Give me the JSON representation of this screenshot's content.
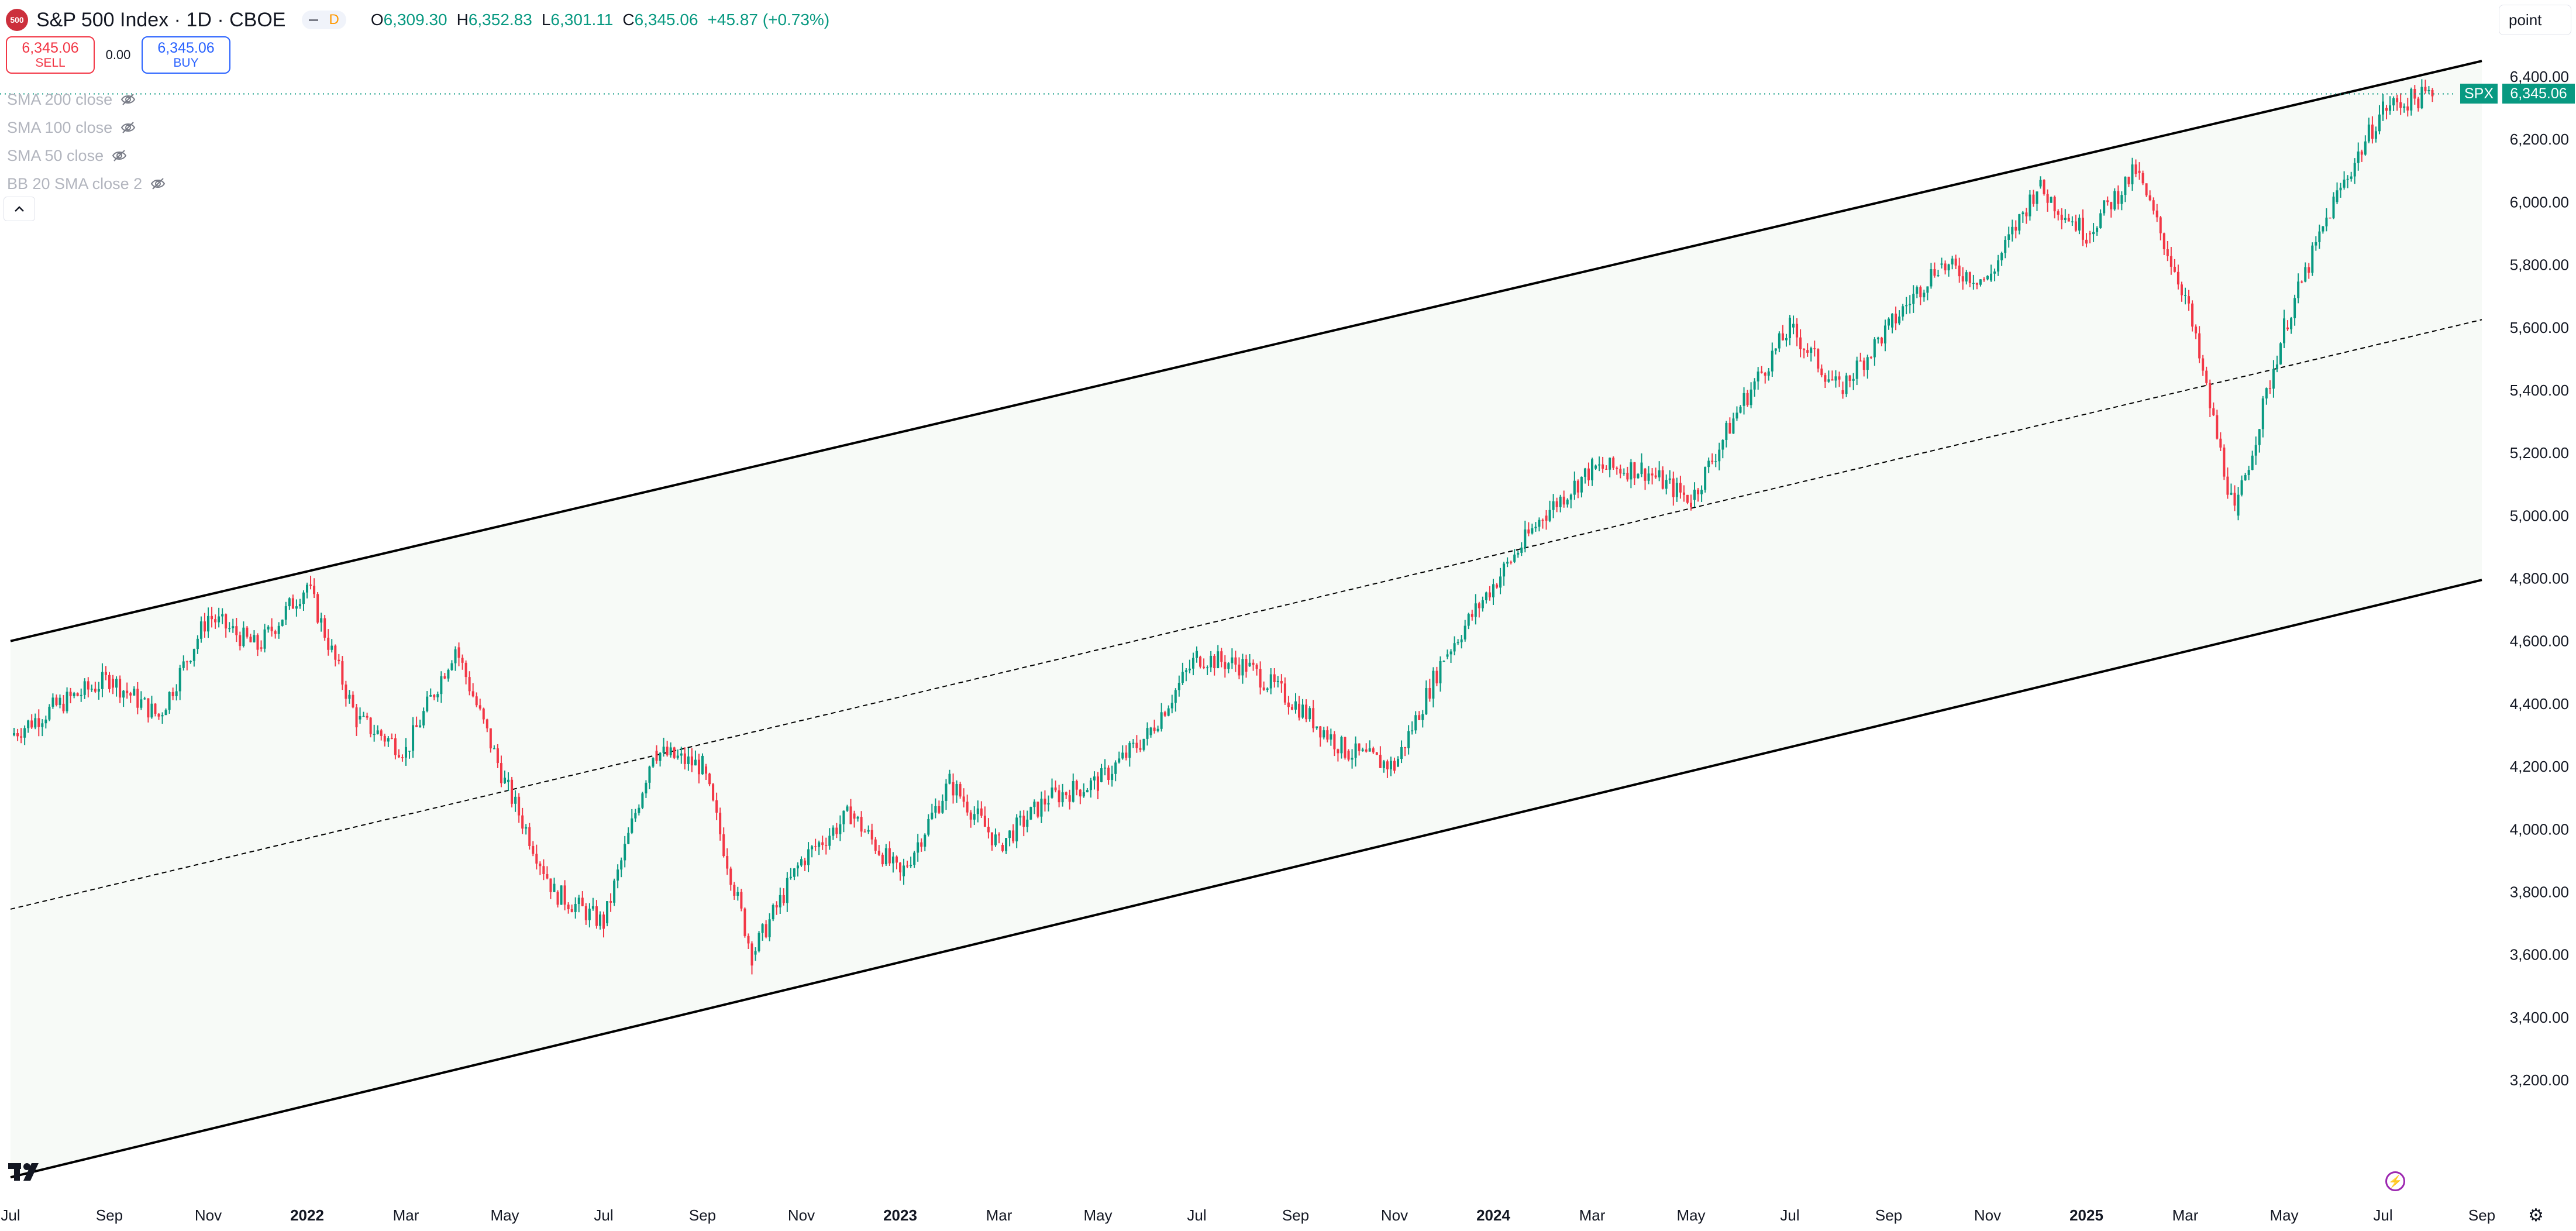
{
  "header": {
    "logo_text": "500",
    "title": "S&P 500 Index · 1D · CBOE",
    "interval_badge": "D",
    "open_label": "O",
    "open_value": "6,309.30",
    "high_label": "H",
    "high_value": "6,352.83",
    "low_label": "L",
    "low_value": "6,301.11",
    "close_label": "C",
    "close_value": "6,345.06",
    "change": "+45.87 (+0.73%)"
  },
  "trade": {
    "sell_price": "6,345.06",
    "sell_label": "SELL",
    "spread": "0.00",
    "buy_price": "6,345.06",
    "buy_label": "BUY"
  },
  "indicators": [
    {
      "label": "SMA 200 close"
    },
    {
      "label": "SMA 100 close"
    },
    {
      "label": "SMA 50 close"
    },
    {
      "label": "BB 20 SMA close 2"
    }
  ],
  "toolbar": {
    "mode_label": "point"
  },
  "price_tag": {
    "symbol": "SPX",
    "value": "6,345.06"
  },
  "colors": {
    "up": "#089981",
    "down": "#f23645",
    "channel_fill": "#f7faf7",
    "accent": "#2962ff"
  },
  "icons": [
    "eye-off-icon",
    "chevron-up-icon",
    "tradingview-logo-icon",
    "lightning-icon",
    "gear-icon"
  ],
  "chart_data": {
    "type": "candlestick",
    "x_tick_labels": [
      "Jul",
      "Sep",
      "Nov",
      "2022",
      "Mar",
      "May",
      "Jul",
      "Sep",
      "Nov",
      "2023",
      "Mar",
      "May",
      "Jul",
      "Sep",
      "Nov",
      "2024",
      "Mar",
      "May",
      "Jul",
      "Sep",
      "Nov",
      "2025",
      "Mar",
      "May",
      "Jul",
      "Sep"
    ],
    "y_tick_labels": [
      "6,400.00",
      "6,200.00",
      "6,000.00",
      "5,800.00",
      "5,600.00",
      "5,400.00",
      "5,200.00",
      "5,000.00",
      "4,800.00",
      "4,600.00",
      "4,400.00",
      "4,200.00",
      "4,000.00",
      "3,800.00",
      "3,600.00",
      "3,400.00",
      "3,200.00"
    ],
    "ylim": [
      3100,
      6450
    ],
    "last_price": 6345.06,
    "channel": {
      "upper": [
        {
          "date": "2021-07",
          "value": 4600
        },
        {
          "date": "2025-09",
          "value": 6450
        }
      ],
      "mid": [
        {
          "date": "2021-07",
          "value": 3745
        },
        {
          "date": "2025-09",
          "value": 5625
        }
      ],
      "lower": [
        {
          "date": "2021-07",
          "value": 2890
        },
        {
          "date": "2025-09",
          "value": 4795
        }
      ]
    },
    "close_series": [
      {
        "date": "2021-07",
        "value": 4300
      },
      {
        "date": "2021-08",
        "value": 4400
      },
      {
        "date": "2021-09",
        "value": 4480
      },
      {
        "date": "2021-10",
        "value": 4360
      },
      {
        "date": "2021-11",
        "value": 4680
      },
      {
        "date": "2021-12",
        "value": 4580
      },
      {
        "date": "2022-01",
        "value": 4780
      },
      {
        "date": "2022-02",
        "value": 4350
      },
      {
        "date": "2022-03",
        "value": 4250
      },
      {
        "date": "2022-04",
        "value": 4580
      },
      {
        "date": "2022-05",
        "value": 4150
      },
      {
        "date": "2022-06",
        "value": 3800
      },
      {
        "date": "2022-07",
        "value": 3700
      },
      {
        "date": "2022-08",
        "value": 4250
      },
      {
        "date": "2022-09",
        "value": 4200
      },
      {
        "date": "2022-10",
        "value": 3600
      },
      {
        "date": "2022-11",
        "value": 3900
      },
      {
        "date": "2022-12",
        "value": 4050
      },
      {
        "date": "2023-01",
        "value": 3850
      },
      {
        "date": "2023-02",
        "value": 4150
      },
      {
        "date": "2023-03",
        "value": 3950
      },
      {
        "date": "2023-04",
        "value": 4100
      },
      {
        "date": "2023-05",
        "value": 4150
      },
      {
        "date": "2023-06",
        "value": 4300
      },
      {
        "date": "2023-07",
        "value": 4550
      },
      {
        "date": "2023-08",
        "value": 4520
      },
      {
        "date": "2023-09",
        "value": 4400
      },
      {
        "date": "2023-10",
        "value": 4250
      },
      {
        "date": "2023-11",
        "value": 4200
      },
      {
        "date": "2023-12",
        "value": 4550
      },
      {
        "date": "2024-01",
        "value": 4780
      },
      {
        "date": "2024-02",
        "value": 5000
      },
      {
        "date": "2024-03",
        "value": 5150
      },
      {
        "date": "2024-04",
        "value": 5150
      },
      {
        "date": "2024-05",
        "value": 5050
      },
      {
        "date": "2024-06",
        "value": 5350
      },
      {
        "date": "2024-07",
        "value": 5600
      },
      {
        "date": "2024-08",
        "value": 5400
      },
      {
        "date": "2024-09",
        "value": 5600
      },
      {
        "date": "2024-10",
        "value": 5800
      },
      {
        "date": "2024-11",
        "value": 5750
      },
      {
        "date": "2024-12",
        "value": 6050
      },
      {
        "date": "2025-01",
        "value": 5900
      },
      {
        "date": "2025-02",
        "value": 6100
      },
      {
        "date": "2025-03",
        "value": 5700
      },
      {
        "date": "2025-04",
        "value": 5000
      },
      {
        "date": "2025-05",
        "value": 5600
      },
      {
        "date": "2025-06",
        "value": 6000
      },
      {
        "date": "2025-07",
        "value": 6300
      },
      {
        "date": "2025-08",
        "value": 6345.06
      }
    ]
  }
}
